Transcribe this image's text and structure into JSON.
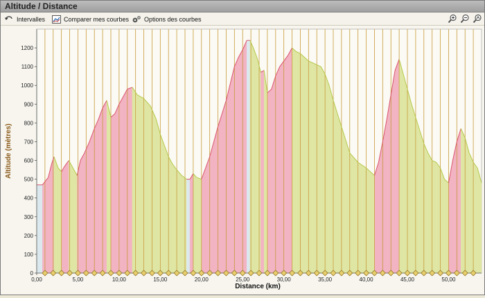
{
  "window": {
    "title": "Altitude / Distance"
  },
  "toolbar": {
    "intervals_label": "Intervalles",
    "compare_label": "Comparer mes courbes",
    "options_label": "Options des courbes",
    "zoom_buttons": [
      "zoom-in-icon",
      "zoom-out-icon",
      "zoom-fit-icon"
    ]
  },
  "colors": {
    "climb": "#f2b3c2",
    "flat": "#dbe9ef",
    "descent": "#dfe6a4",
    "line_climb": "#d9546c",
    "line_descent": "#b5c84a",
    "interval_line": "#c79a3a",
    "axis_label": "#8a5a1a"
  },
  "chart_data": {
    "type": "area",
    "xlabel": "Distance (km)",
    "ylabel": "Altitude (mètres)",
    "xlim": [
      0,
      54
    ],
    "ylim": [
      0,
      1300
    ],
    "xticks": [
      0,
      5,
      10,
      15,
      20,
      25,
      30,
      35,
      40,
      45,
      50
    ],
    "xtick_labels": [
      "0,00",
      "5,00",
      "10,00",
      "15,00",
      "20,00",
      "25,00",
      "30,00",
      "35,00",
      "40,00",
      "45,00",
      "50,00"
    ],
    "yticks": [
      0,
      100,
      200,
      300,
      400,
      500,
      600,
      700,
      800,
      900,
      1000,
      1100,
      1200
    ],
    "interval_step_km": 1,
    "grid": false,
    "series": [
      {
        "x": [
          0,
          0.7,
          1.4,
          1.8,
          2.1,
          2.6,
          3,
          3.4,
          3.9,
          4.4,
          4.9,
          5.3,
          5.8,
          6.4,
          7,
          7.5,
          8,
          8.5,
          9,
          9.5,
          10,
          10.5,
          11,
          11.6,
          12.2,
          13,
          13.8,
          14.5,
          15,
          15.5,
          16,
          16.5,
          17,
          17.6,
          18.2,
          18.6,
          19,
          19.4,
          20,
          20.5,
          21,
          21.5,
          22,
          22.5,
          23,
          23.5,
          24,
          24.5,
          25,
          25.5,
          25.9,
          26.3,
          26.8,
          27.2,
          27.6,
          28,
          28.5,
          29,
          29.5,
          30,
          30.5,
          31,
          31.5,
          32,
          32.5,
          33,
          33.5,
          34,
          34.5,
          35,
          35.5,
          36,
          36.5,
          37,
          37.5,
          38,
          39,
          40,
          41,
          41.5,
          42,
          42.5,
          43,
          43.5,
          44,
          44.5,
          45,
          45.5,
          46,
          46.5,
          47,
          47.5,
          48,
          48.5,
          49,
          49.5,
          50,
          50.5,
          51,
          51.5,
          52,
          52.5,
          53,
          53.5,
          54
        ],
        "y": [
          470,
          470,
          510,
          580,
          620,
          560,
          540,
          570,
          600,
          560,
          520,
          600,
          640,
          700,
          770,
          820,
          880,
          920,
          830,
          850,
          900,
          940,
          980,
          990,
          950,
          930,
          890,
          820,
          740,
          680,
          620,
          580,
          550,
          520,
          500,
          500,
          530,
          510,
          500,
          560,
          620,
          700,
          780,
          850,
          920,
          1010,
          1100,
          1150,
          1190,
          1240,
          1240,
          1200,
          1140,
          1070,
          1080,
          960,
          980,
          1050,
          1100,
          1130,
          1160,
          1200,
          1180,
          1170,
          1150,
          1130,
          1120,
          1110,
          1100,
          1060,
          1000,
          920,
          850,
          780,
          710,
          640,
          590,
          560,
          520,
          590,
          700,
          820,
          950,
          1080,
          1140,
          1060,
          980,
          900,
          830,
          760,
          690,
          640,
          600,
          590,
          560,
          500,
          480,
          600,
          700,
          770,
          720,
          640,
          590,
          560,
          480
        ]
      }
    ]
  }
}
